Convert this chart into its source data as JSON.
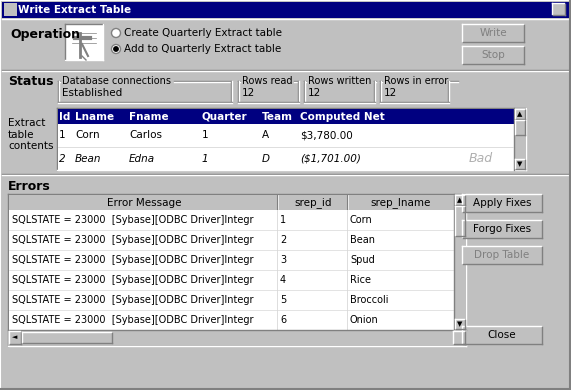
{
  "title": "Write Extract Table",
  "bg_color": "#c0c0c0",
  "operation_label": "Operation",
  "radio1": "Create Quarterly Extract table",
  "radio2": "Add to Quarterly Extract table",
  "btn_write": "Write",
  "btn_stop": "Stop",
  "status_label": "Status",
  "db_conn_label": "Database connections",
  "db_conn_val": "Established",
  "rows_read_label": "Rows read",
  "rows_read_val": "12",
  "rows_written_label": "Rows written",
  "rows_written_val": "12",
  "rows_error_label": "Rows in error",
  "rows_error_val": "12",
  "extract_label": "Extract\ntable\ncontents",
  "table_headers": [
    "Id",
    "Lname",
    "Fname",
    "Quarter",
    "Team",
    "Computed Net"
  ],
  "table_rows": [
    [
      "1",
      "Corn",
      "Carlos",
      "1",
      "A",
      "$3,780.00"
    ],
    [
      "2",
      "Bean",
      "Edna",
      "1",
      "D",
      "($1,701.00)"
    ]
  ],
  "bad_watermark": "Bad",
  "errors_label": "Errors",
  "error_headers": [
    "Error Message",
    "srep_id",
    "srep_lname"
  ],
  "error_rows": [
    [
      "SQLSTATE = 23000  [Sybase][ODBC Driver]Integr",
      "1",
      "Corn"
    ],
    [
      "SQLSTATE = 23000  [Sybase][ODBC Driver]Integr",
      "2",
      "Bean"
    ],
    [
      "SQLSTATE = 23000  [Sybase][ODBC Driver]Integr",
      "3",
      "Spud"
    ],
    [
      "SQLSTATE = 23000  [Sybase][ODBC Driver]Integr",
      "4",
      "Rice"
    ],
    [
      "SQLSTATE = 23000  [Sybase][ODBC Driver]Integr",
      "5",
      "Broccoli"
    ],
    [
      "SQLSTATE = 23000  [Sybase][ODBC Driver]Integr",
      "6",
      "Onion"
    ]
  ],
  "btn_apply": "Apply Fixes",
  "btn_forgo": "Forgo Fixes",
  "btn_drop": "Drop Table",
  "btn_close": "Close",
  "white": "#ffffff",
  "black": "#000000",
  "gray": "#c0c0c0",
  "dark_gray": "#808080",
  "navy": "#000080",
  "disabled_text": "#808080"
}
